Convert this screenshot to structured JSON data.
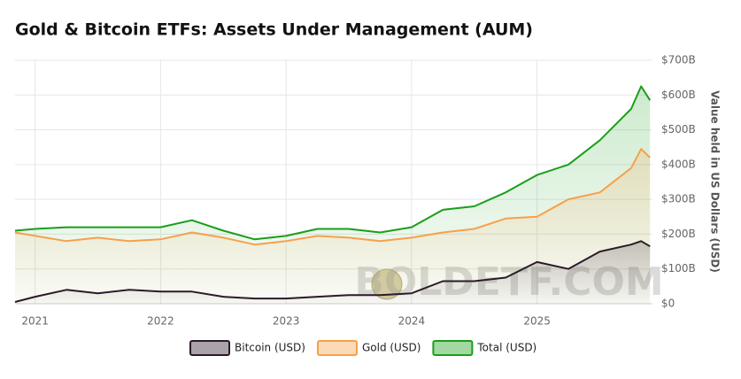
{
  "chart_data": {
    "type": "area",
    "title": "Gold & Bitcoin ETFs: Assets Under Management (AUM)",
    "y_axis_label": "Value held in US Dollars (USD)",
    "watermark": "BOLDETF.COM",
    "x": [
      2020.84,
      2021.0,
      2021.25,
      2021.5,
      2021.75,
      2022.0,
      2022.25,
      2022.5,
      2022.75,
      2023.0,
      2023.25,
      2023.5,
      2023.75,
      2024.0,
      2024.25,
      2024.5,
      2024.75,
      2025.0,
      2025.25,
      2025.5,
      2025.75,
      2025.83,
      2025.9
    ],
    "series": [
      {
        "name": "Total (USD)",
        "color": "#1a9e1a",
        "values": [
          210,
          215,
          220,
          220,
          220,
          220,
          240,
          210,
          185,
          195,
          215,
          215,
          205,
          220,
          270,
          280,
          320,
          370,
          400,
          470,
          560,
          625,
          585
        ]
      },
      {
        "name": "Gold (USD)",
        "color": "#f7a04b",
        "values": [
          205,
          195,
          180,
          190,
          180,
          185,
          205,
          190,
          170,
          180,
          195,
          190,
          180,
          190,
          205,
          215,
          245,
          250,
          300,
          320,
          390,
          445,
          420
        ]
      },
      {
        "name": "Bitcoin (USD)",
        "color": "#2b1a2b",
        "values": [
          5,
          20,
          40,
          30,
          40,
          35,
          35,
          20,
          15,
          15,
          20,
          25,
          25,
          30,
          65,
          65,
          75,
          120,
          100,
          150,
          170,
          180,
          165
        ]
      }
    ],
    "legend_order": [
      "Bitcoin (USD)",
      "Gold (USD)",
      "Total (USD)"
    ],
    "xlim": [
      2020.84,
      2025.92
    ],
    "xticks": [
      2021,
      2022,
      2023,
      2024,
      2025
    ],
    "ylim": [
      0,
      700
    ],
    "yticks": [
      {
        "value": 0,
        "label": "$0"
      },
      {
        "value": 100,
        "label": "$100B"
      },
      {
        "value": 200,
        "label": "$200B"
      },
      {
        "value": 300,
        "label": "$300B"
      },
      {
        "value": 400,
        "label": "$400B"
      },
      {
        "value": 500,
        "label": "$500B"
      },
      {
        "value": 600,
        "label": "$600B"
      },
      {
        "value": 700,
        "label": "$700B"
      }
    ],
    "grid": true,
    "legend": "bottom"
  }
}
